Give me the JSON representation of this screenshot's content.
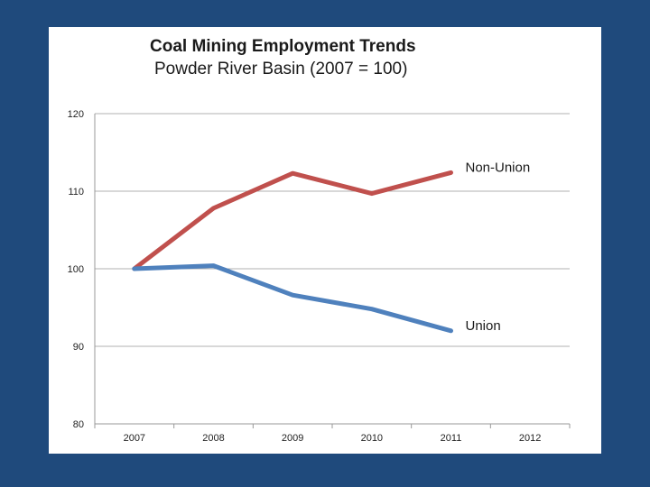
{
  "chart_data": {
    "type": "line",
    "title": "Coal Mining Employment Trends",
    "subtitle": "Powder River Basin (2007 = 100)",
    "xlabel": "",
    "ylabel": "",
    "categories": [
      "2007",
      "2008",
      "2009",
      "2010",
      "2011",
      "2012"
    ],
    "yticks": [
      "120",
      "110",
      "100",
      "90",
      "80"
    ],
    "ylim": [
      80,
      120
    ],
    "grid": true,
    "legend": "inline labels at line ends",
    "series": [
      {
        "name": "Non-Union",
        "color": "#c0504d",
        "values": [
          100,
          107.8,
          112.3,
          109.7,
          112.4,
          null
        ]
      },
      {
        "name": "Union",
        "color": "#4f81bd",
        "values": [
          100,
          100.4,
          96.6,
          94.8,
          92,
          null
        ]
      }
    ]
  }
}
